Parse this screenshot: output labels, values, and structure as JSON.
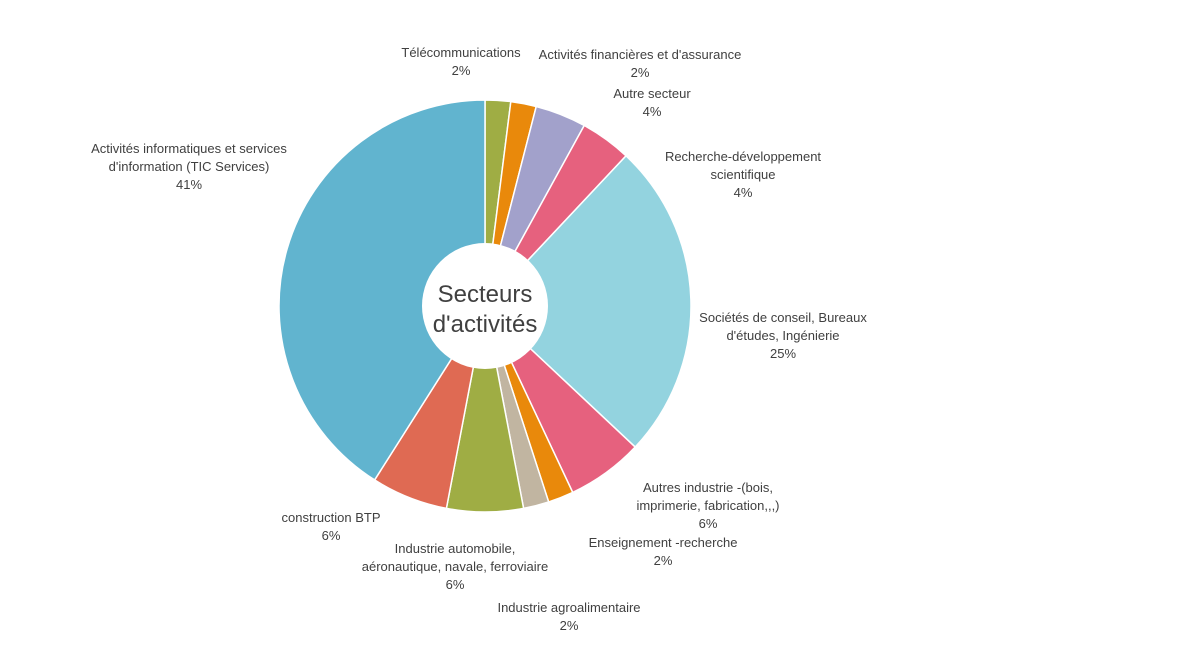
{
  "chart_data": {
    "type": "pie",
    "donut": true,
    "center_label": [
      "Secteurs",
      "d'activités"
    ],
    "slices": [
      {
        "label": [
          "Télécommunications"
        ],
        "value": 2,
        "display": "2%",
        "color": "#9fad44"
      },
      {
        "label": [
          "Activités financières et d'assurance"
        ],
        "value": 2,
        "display": "2%",
        "color": "#e9890b"
      },
      {
        "label": [
          "Autre secteur"
        ],
        "value": 4,
        "display": "4%",
        "color": "#a2a1cb"
      },
      {
        "label": [
          "Recherche-développement",
          "scientifique"
        ],
        "value": 4,
        "display": "4%",
        "color": "#e6617e"
      },
      {
        "label": [
          "Sociétés de conseil, Bureaux",
          "d'études, Ingénierie"
        ],
        "value": 25,
        "display": "25%",
        "color": "#93d3df"
      },
      {
        "label": [
          "Autres industrie -(bois,",
          "imprimerie, fabrication,,,)"
        ],
        "value": 6,
        "display": "6%",
        "color": "#e6617e"
      },
      {
        "label": [
          "Enseignement -recherche"
        ],
        "value": 2,
        "display": "2%",
        "color": "#e9890b"
      },
      {
        "label": [
          "Industrie agroalimentaire"
        ],
        "value": 2,
        "display": "2%",
        "color": "#c1b5a1"
      },
      {
        "label": [
          "Industrie automobile,",
          "aéronautique, navale, ferroviaire"
        ],
        "value": 6,
        "display": "6%",
        "color": "#9fad44"
      },
      {
        "label": [
          "construction BTP"
        ],
        "value": 6,
        "display": "6%",
        "color": "#df6a53"
      },
      {
        "label": [
          "Activités informatiques et services",
          "d'information (TIC Services)"
        ],
        "value": 41,
        "display": "41%",
        "color": "#61b4cf"
      }
    ]
  }
}
